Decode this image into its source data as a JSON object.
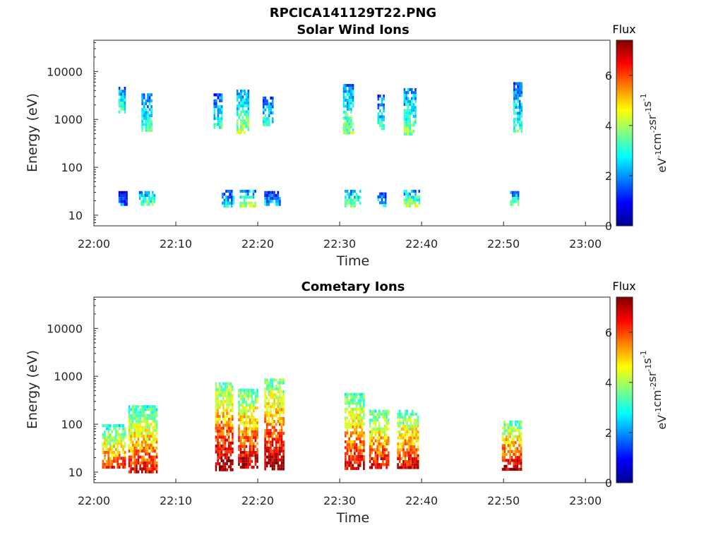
{
  "figure_title": "RPCICA141129T22.PNG",
  "colors": {
    "colormap": [
      "#00008f",
      "#0000ff",
      "#0080ff",
      "#00ffff",
      "#80ff80",
      "#ffff00",
      "#ff8000",
      "#ff0000",
      "#800000"
    ],
    "axes": "#262626",
    "background": "#ffffff"
  },
  "chart_data": [
    {
      "type": "heatmap",
      "title": "Solar Wind Ions",
      "xlabel": "Time",
      "ylabel": "Energy (eV)",
      "x_ticks": [
        "22:00",
        "22:10",
        "22:20",
        "22:30",
        "22:40",
        "22:50",
        "23:00"
      ],
      "xlim": [
        "22:00",
        "23:03"
      ],
      "y_ticks": [
        "10",
        "100",
        "1000",
        "10000"
      ],
      "y_scale": "log",
      "ylim": [
        6,
        45000
      ],
      "colorbar": {
        "title": "Flux",
        "label": "eV-1cm-2sr-1s-1",
        "ticks": [
          "0",
          "2",
          "4",
          "6"
        ],
        "range": [
          0,
          7.4
        ]
      },
      "features": [
        {
          "t_start": 3.0,
          "t_end": 3.8,
          "e_min": 1500,
          "e_max": 4800,
          "flux": 3.0
        },
        {
          "t_start": 3.0,
          "t_end": 4.0,
          "e_min": 16,
          "e_max": 32,
          "flux": 1.6
        },
        {
          "t_start": 5.8,
          "t_end": 7.0,
          "e_min": 600,
          "e_max": 3500,
          "flux": 3.0
        },
        {
          "t_start": 5.5,
          "t_end": 7.5,
          "e_min": 16,
          "e_max": 32,
          "flux": 3.5
        },
        {
          "t_start": 14.6,
          "t_end": 15.6,
          "e_min": 700,
          "e_max": 3500,
          "flux": 2.8
        },
        {
          "t_start": 15.6,
          "t_end": 17.0,
          "e_min": 16,
          "e_max": 34,
          "flux": 2.5
        },
        {
          "t_start": 17.4,
          "t_end": 18.8,
          "e_min": 500,
          "e_max": 4200,
          "flux": 3.6
        },
        {
          "t_start": 17.8,
          "t_end": 19.8,
          "e_min": 16,
          "e_max": 34,
          "flux": 3.8
        },
        {
          "t_start": 20.6,
          "t_end": 21.8,
          "e_min": 800,
          "e_max": 3000,
          "flux": 2.8
        },
        {
          "t_start": 20.8,
          "t_end": 22.8,
          "e_min": 16,
          "e_max": 32,
          "flux": 2.2
        },
        {
          "t_start": 30.4,
          "t_end": 31.6,
          "e_min": 500,
          "e_max": 5500,
          "flux": 3.4
        },
        {
          "t_start": 30.6,
          "t_end": 32.6,
          "e_min": 16,
          "e_max": 34,
          "flux": 3.6
        },
        {
          "t_start": 34.6,
          "t_end": 35.4,
          "e_min": 600,
          "e_max": 3300,
          "flux": 2.8
        },
        {
          "t_start": 34.6,
          "t_end": 35.6,
          "e_min": 16,
          "e_max": 30,
          "flux": 2.6
        },
        {
          "t_start": 37.8,
          "t_end": 39.2,
          "e_min": 500,
          "e_max": 4500,
          "flux": 3.4
        },
        {
          "t_start": 37.8,
          "t_end": 39.6,
          "e_min": 16,
          "e_max": 34,
          "flux": 3.8
        },
        {
          "t_start": 51.2,
          "t_end": 52.2,
          "e_min": 600,
          "e_max": 6000,
          "flux": 2.8
        },
        {
          "t_start": 50.8,
          "t_end": 51.8,
          "e_min": 16,
          "e_max": 32,
          "flux": 3.2
        }
      ]
    },
    {
      "type": "heatmap",
      "title": "Cometary Ions",
      "xlabel": "Time",
      "ylabel": "Energy (eV)",
      "x_ticks": [
        "22:00",
        "22:10",
        "22:20",
        "22:30",
        "22:40",
        "22:50",
        "23:00"
      ],
      "xlim": [
        "22:00",
        "23:03"
      ],
      "y_ticks": [
        "10",
        "100",
        "1000",
        "10000"
      ],
      "y_scale": "log",
      "ylim": [
        6,
        45000
      ],
      "colorbar": {
        "title": "Flux",
        "label": "eV-1cm-2sr-1s-1",
        "ticks": [
          "0",
          "2",
          "4",
          "6"
        ],
        "range": [
          0,
          7.4
        ]
      },
      "features": [
        {
          "t_start": 1.0,
          "t_end": 3.8,
          "e_min": 13,
          "e_max": 100,
          "flux": 5.5
        },
        {
          "t_start": 4.2,
          "t_end": 7.6,
          "e_min": 10,
          "e_max": 250,
          "flux": 5.8
        },
        {
          "t_start": 14.8,
          "t_end": 17.0,
          "e_min": 12,
          "e_max": 750,
          "flux": 6.5
        },
        {
          "t_start": 17.6,
          "t_end": 20.0,
          "e_min": 12,
          "e_max": 550,
          "flux": 6.3
        },
        {
          "t_start": 20.8,
          "t_end": 23.2,
          "e_min": 12,
          "e_max": 900,
          "flux": 6.5
        },
        {
          "t_start": 30.6,
          "t_end": 33.0,
          "e_min": 12,
          "e_max": 450,
          "flux": 6.0
        },
        {
          "t_start": 33.6,
          "t_end": 36.0,
          "e_min": 12,
          "e_max": 200,
          "flux": 6.0
        },
        {
          "t_start": 37.0,
          "t_end": 39.6,
          "e_min": 12,
          "e_max": 200,
          "flux": 6.0
        },
        {
          "t_start": 49.8,
          "t_end": 52.2,
          "e_min": 12,
          "e_max": 120,
          "flux": 6.2
        }
      ]
    }
  ]
}
